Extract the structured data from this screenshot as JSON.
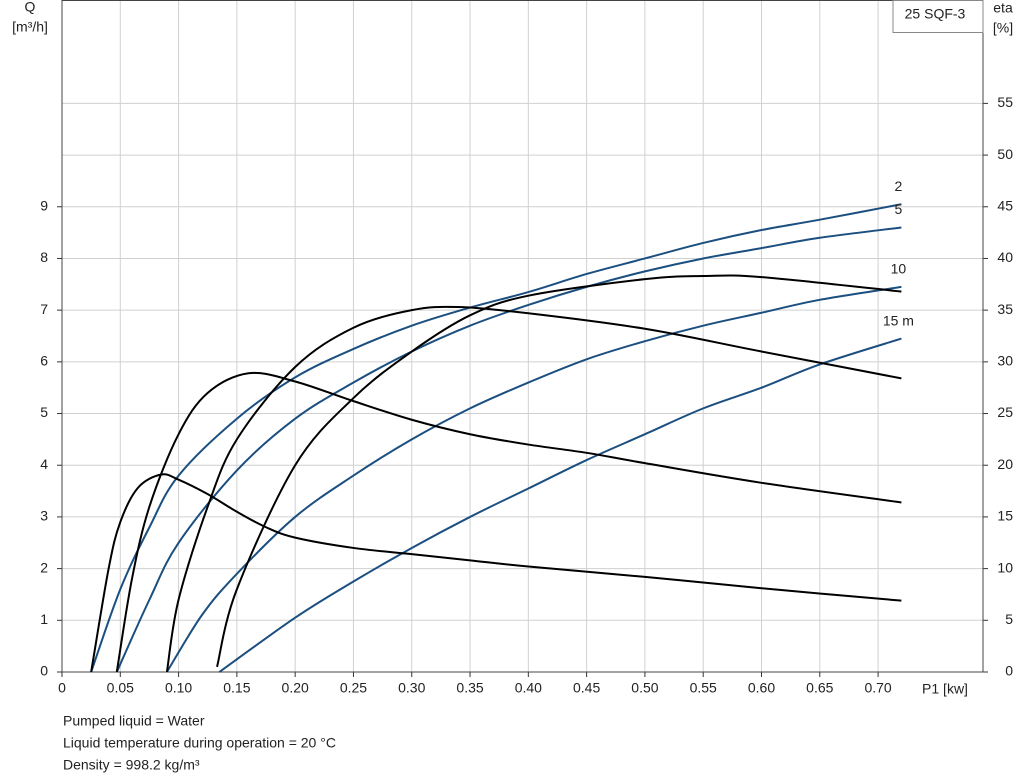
{
  "chart_data": {
    "type": "line",
    "legend_box": "25 SQF-3",
    "y_label": "Q",
    "y_unit": "[m³/h]",
    "y2_label": "eta",
    "y2_unit": "[%]",
    "x_label": "P1 [kw]",
    "notes": [
      "Pumped liquid = Water",
      "Liquid temperature during operation = 20 °C",
      "Density = 998.2 kg/m³"
    ],
    "xlim": [
      0,
      0.79
    ],
    "ylim": [
      0,
      13
    ],
    "y2lim": [
      0,
      65
    ],
    "xticks": [
      0,
      0.05,
      {
        "value": 0.1,
        "label": "0.10"
      },
      0.15,
      {
        "value": 0.2,
        "label": "0.20"
      },
      0.25,
      {
        "value": 0.3,
        "label": "0.30"
      },
      0.35,
      {
        "value": 0.4,
        "label": "0.40"
      },
      0.45,
      {
        "value": 0.5,
        "label": "0.50"
      },
      0.55,
      {
        "value": 0.6,
        "label": "0.60"
      },
      0.65,
      {
        "value": 0.7,
        "label": "0.70"
      }
    ],
    "yticks": [
      0,
      1,
      2,
      3,
      4,
      5,
      6,
      7,
      8,
      9
    ],
    "y2ticks": [
      0,
      5,
      10,
      15,
      20,
      25,
      30,
      35,
      40,
      45,
      50,
      55
    ],
    "grid": true,
    "series": [
      {
        "name": "2",
        "color": "#1b4f80",
        "x": [
          0.025,
          0.05,
          0.075,
          0.1,
          0.15,
          0.2,
          0.25,
          0.3,
          0.35,
          0.4,
          0.45,
          0.5,
          0.55,
          0.6,
          0.65,
          0.72
        ],
        "values": [
          0,
          1.6,
          2.8,
          3.8,
          4.9,
          5.7,
          6.25,
          6.7,
          7.05,
          7.35,
          7.7,
          8.0,
          8.3,
          8.55,
          8.75,
          9.05
        ]
      },
      {
        "name": "5",
        "color": "#1b4f80",
        "x": [
          0.047,
          0.075,
          0.1,
          0.15,
          0.2,
          0.25,
          0.3,
          0.35,
          0.4,
          0.45,
          0.5,
          0.55,
          0.6,
          0.65,
          0.72
        ],
        "values": [
          0,
          1.4,
          2.5,
          3.9,
          4.9,
          5.6,
          6.2,
          6.7,
          7.1,
          7.45,
          7.75,
          8.0,
          8.2,
          8.4,
          8.6
        ]
      },
      {
        "name": "10",
        "color": "#1b4f80",
        "x": [
          0.09,
          0.12,
          0.15,
          0.2,
          0.25,
          0.3,
          0.35,
          0.4,
          0.45,
          0.5,
          0.55,
          0.6,
          0.65,
          0.72
        ],
        "values": [
          0,
          1.1,
          1.9,
          3.0,
          3.8,
          4.5,
          5.1,
          5.6,
          6.05,
          6.4,
          6.7,
          6.95,
          7.2,
          7.45
        ]
      },
      {
        "name": "15 m",
        "color": "#1b4f80",
        "x": [
          0.135,
          0.2,
          0.25,
          0.3,
          0.35,
          0.4,
          0.45,
          0.5,
          0.55,
          0.6,
          0.65,
          0.72
        ],
        "values": [
          0,
          1.05,
          1.75,
          2.4,
          3.0,
          3.55,
          4.1,
          4.6,
          5.1,
          5.5,
          5.95,
          6.45
        ]
      },
      {
        "axis": "y2",
        "color": "#000000",
        "x": [
          0.025,
          0.04,
          0.05,
          0.065,
          0.085,
          0.1,
          0.125,
          0.15,
          0.175,
          0.2,
          0.25,
          0.3,
          0.35,
          0.4,
          0.5,
          0.6,
          0.72
        ],
        "values": [
          0,
          10,
          14.5,
          17.8,
          19.1,
          18.6,
          17.2,
          15.5,
          14.0,
          13.0,
          12.0,
          11.4,
          10.8,
          10.2,
          9.2,
          8.1,
          6.9
        ]
      },
      {
        "axis": "y2",
        "color": "#000000",
        "x": [
          0.047,
          0.06,
          0.075,
          0.1,
          0.125,
          0.16,
          0.2,
          0.25,
          0.3,
          0.35,
          0.4,
          0.45,
          0.5,
          0.6,
          0.72
        ],
        "values": [
          0,
          9,
          16,
          23,
          27,
          28.9,
          28.1,
          26.2,
          24.4,
          23,
          22,
          21.2,
          20.2,
          18.3,
          16.4
        ]
      },
      {
        "axis": "y2",
        "color": "#000000",
        "x": [
          0.09,
          0.1,
          0.125,
          0.15,
          0.2,
          0.25,
          0.3,
          0.34,
          0.4,
          0.5,
          0.6,
          0.72
        ],
        "values": [
          0,
          7,
          16,
          22.5,
          29.5,
          33.3,
          35.0,
          35.3,
          34.7,
          33.2,
          31.0,
          28.4
        ]
      },
      {
        "axis": "y2",
        "color": "#000000",
        "x": [
          0.133,
          0.15,
          0.2,
          0.25,
          0.3,
          0.35,
          0.4,
          0.5,
          0.55,
          0.6,
          0.72
        ],
        "values": [
          0.5,
          8,
          20,
          26.5,
          31,
          34.5,
          36.4,
          38.0,
          38.3,
          38.2,
          36.8
        ]
      }
    ]
  }
}
